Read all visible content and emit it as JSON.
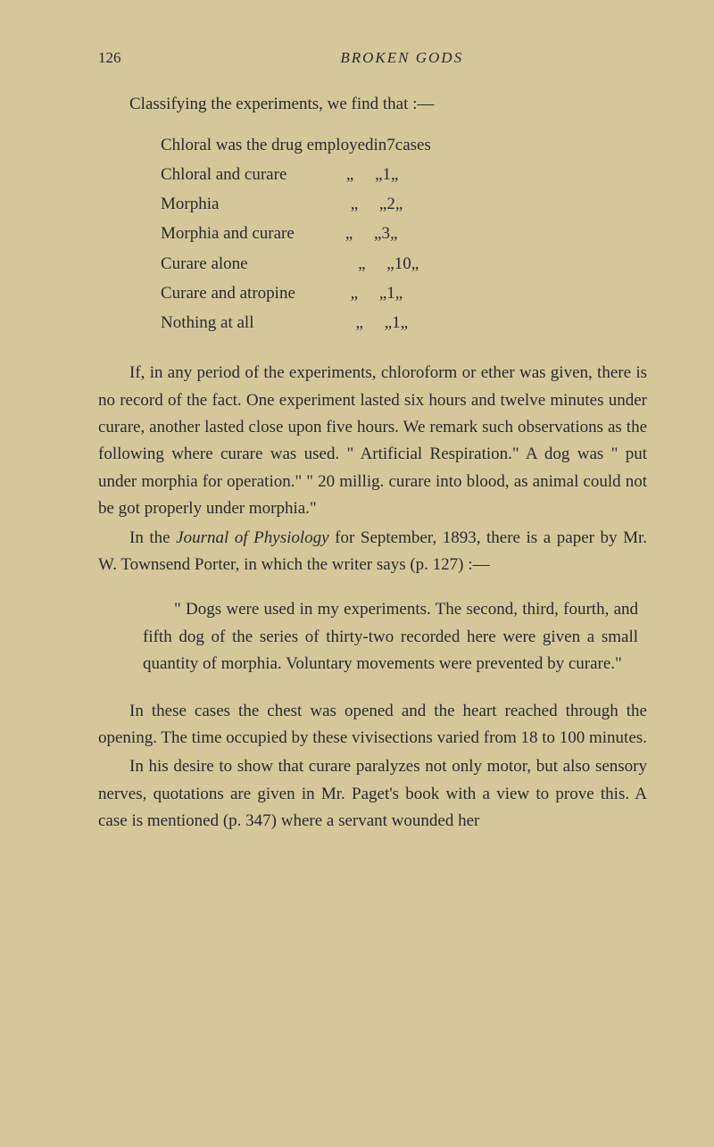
{
  "header": {
    "page_number": "126",
    "book_title": "BROKEN GODS"
  },
  "intro": "Classifying the experiments, we find that :—",
  "drugs": [
    {
      "name": "Chloral was the drug employed",
      "in_word": "in",
      "count": "7",
      "unit": "cases"
    },
    {
      "name": "Chloral and curare",
      "in_word": "„",
      "count": "1",
      "unit": "„"
    },
    {
      "name": "Morphia",
      "in_word": "„",
      "count": "2",
      "unit": "„"
    },
    {
      "name": "Morphia and curare",
      "in_word": "„",
      "count": "3",
      "unit": "„"
    },
    {
      "name": "Curare alone",
      "in_word": "„",
      "count": "10",
      "unit": "„"
    },
    {
      "name": "Curare and atropine",
      "in_word": "„",
      "count": "1",
      "unit": "„"
    },
    {
      "name": "Nothing at all",
      "in_word": "„",
      "count": "1",
      "unit": "„"
    }
  ],
  "para1": "If, in any period of the experiments, chloroform or ether was given, there is no record of the fact. One experiment lasted six hours and twelve minutes under curare, another lasted close upon five hours. We remark such observations as the following where curare was used. \" Artificial Respiration.\" A dog was \" put under morphia for operation.\" \" 20 millig. curare into blood, as animal could not be got properly under morphia.\"",
  "para2_pre": "In the ",
  "para2_journal": "Journal of Physiology",
  "para2_post": " for September, 1893, there is a paper by Mr. W. Townsend Porter, in which the writer says (p. 127) :—",
  "quote": "\" Dogs were used in my experiments. The second, third, fourth, and fifth dog of the series of thirty-two recorded here were given a small quantity of morphia. Voluntary movements were prevented by curare.\"",
  "para3": "In these cases the chest was opened and the heart reached through the opening. The time occupied by these vivisections varied from 18 to 100 minutes.",
  "para4": "In his desire to show that curare paralyzes not only motor, but also sensory nerves, quotations are given in Mr. Paget's book with a view to prove this. A case is mentioned (p. 347) where a servant wounded her"
}
